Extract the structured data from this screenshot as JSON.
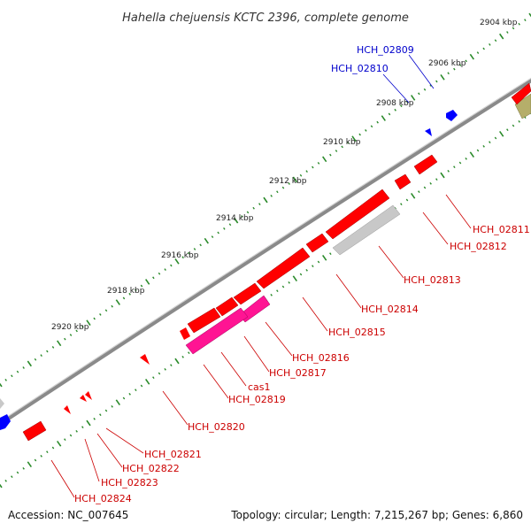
{
  "title": "Hahella chejuensis KCTC 2396, complete genome",
  "footer": {
    "accession": "Accession: NC_007645",
    "stats": "Topology: circular; Length: 7,215,267 bp; Genes: 6,860"
  },
  "scale_ticks": [
    "2904 kbp",
    "2906 kbp",
    "2908 kbp",
    "2910 kbp",
    "2912 kbp",
    "2914 kbp",
    "2916 kbp",
    "2918 kbp",
    "2920 kbp"
  ],
  "colors": {
    "backbone": "#888888",
    "gene_red": "#ff0000",
    "gene_magenta": "#ff1493",
    "gene_gray": "#c8c8c8",
    "gene_olive": "#b5ae6a",
    "gene_blue": "#0000ff",
    "label_blue": "#0000cc",
    "label_red": "#cc0000",
    "tick_green": "#2a8a2a"
  },
  "gene_labels_top": [
    "HCH_02809",
    "HCH_02810"
  ],
  "gene_labels_bottom": [
    "HCH_02811",
    "HCH_02812",
    "HCH_02813",
    "HCH_02814",
    "HCH_02815",
    "HCH_02816",
    "HCH_02817",
    "cas1",
    "HCH_02819",
    "HCH_02820",
    "HCH_02821",
    "HCH_02822",
    "HCH_02823",
    "HCH_02824"
  ]
}
